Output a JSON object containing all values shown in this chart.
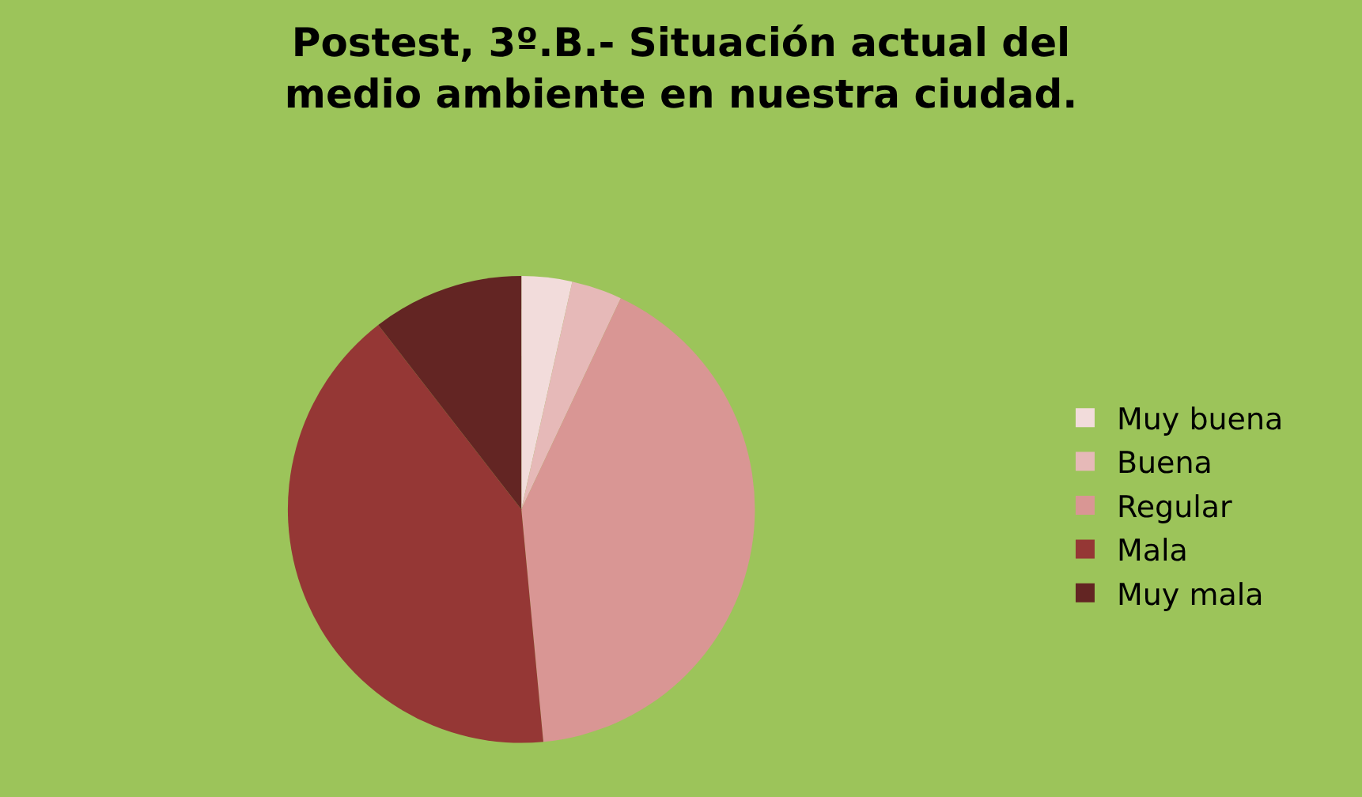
{
  "chart_data": {
    "type": "pie",
    "title": "Postest, 3º.B.- Situación actual del\nmedio ambiente en nuestra ciudad.",
    "categories": [
      "Muy buena",
      "Buena",
      "Regular",
      "Mala",
      "Muy mala"
    ],
    "values": [
      3.5,
      3.5,
      41.5,
      41,
      10.5
    ],
    "colors": [
      "#f2dcdb",
      "#e6b9b8",
      "#d99694",
      "#953735",
      "#632523"
    ],
    "legend": "right"
  }
}
